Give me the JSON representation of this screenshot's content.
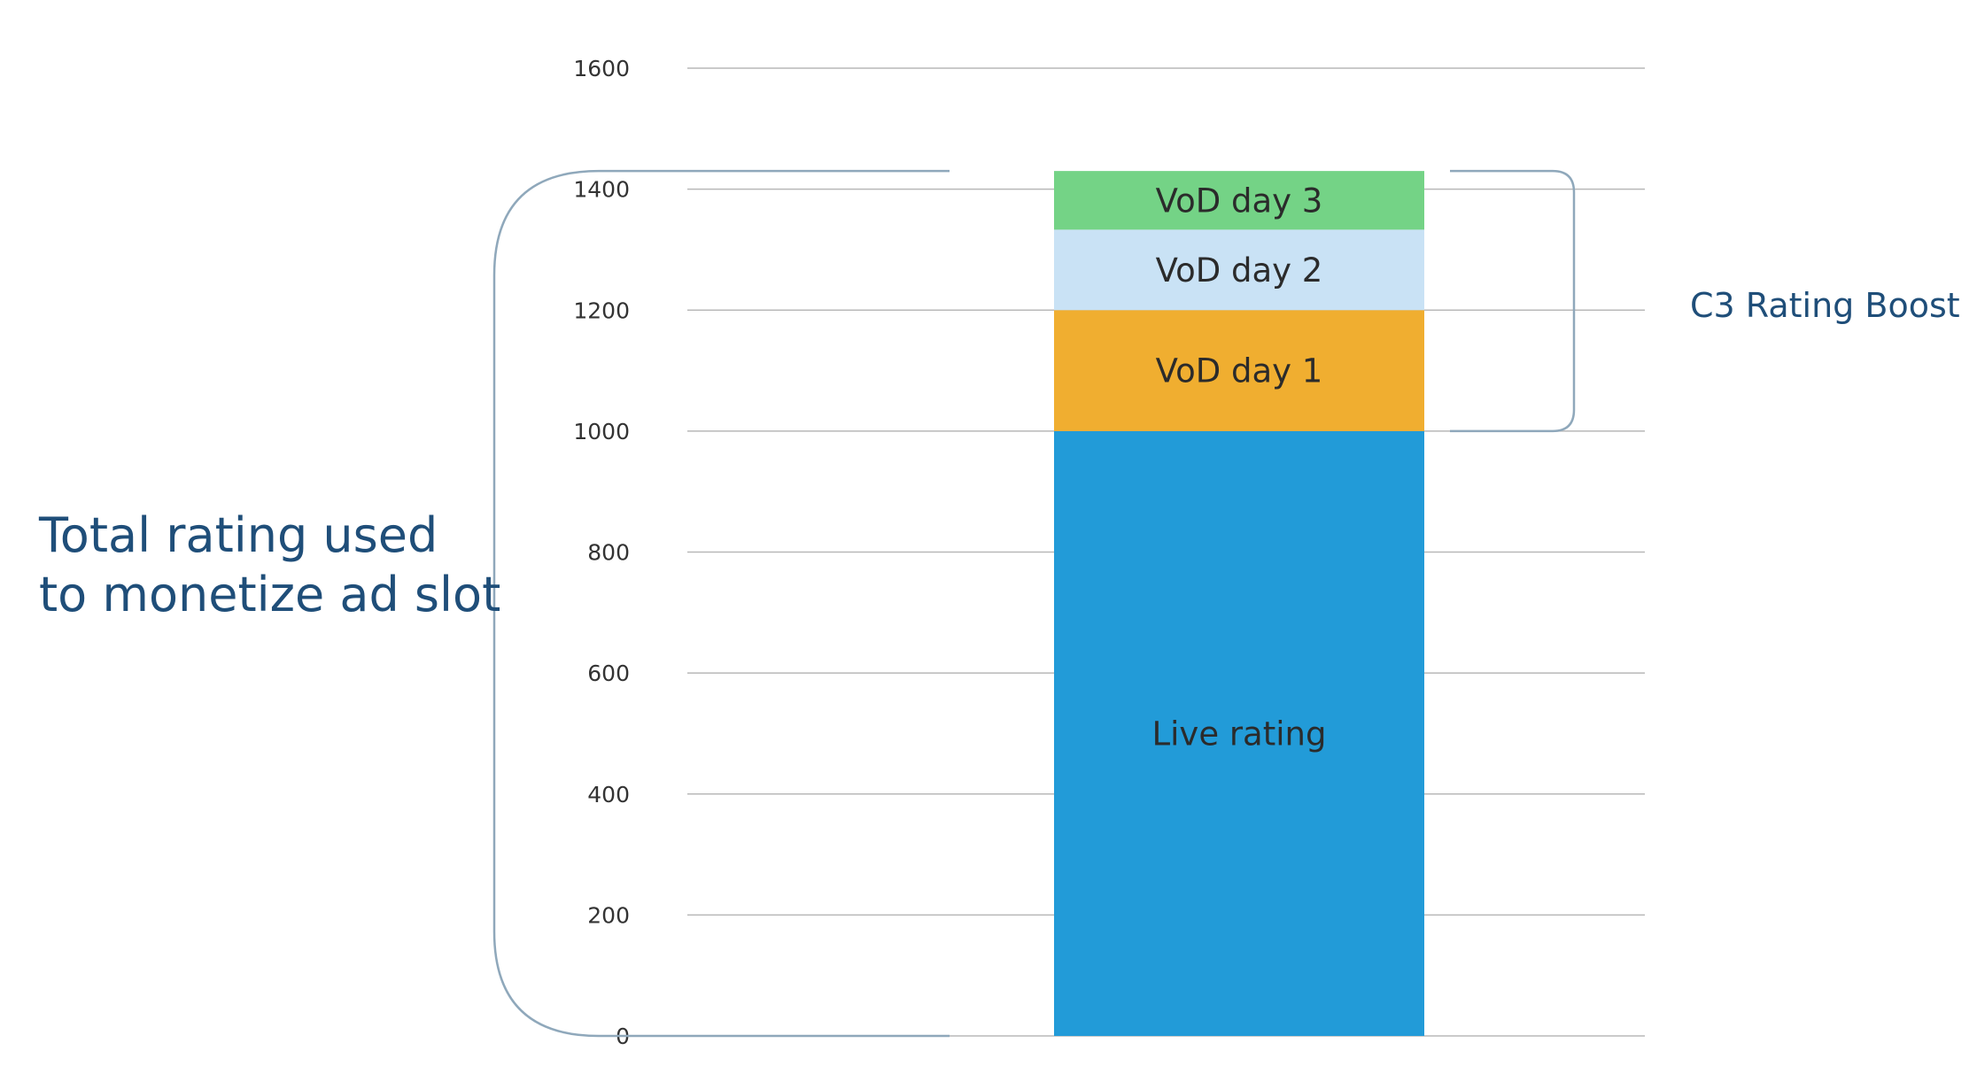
{
  "chart_data": {
    "type": "bar",
    "stacked": true,
    "categories": [
      ""
    ],
    "series": [
      {
        "name": "Live rating",
        "values": [
          1000
        ],
        "color": "#229bd8"
      },
      {
        "name": "VoD day 1",
        "values": [
          200
        ],
        "color": "#f0ae30"
      },
      {
        "name": "VoD day 2",
        "values": [
          133
        ],
        "color": "#c9e2f5"
      },
      {
        "name": "VoD day 3",
        "values": [
          97
        ],
        "color": "#74d386"
      }
    ],
    "ylim": [
      0,
      1600
    ],
    "yticks": [
      0,
      200,
      400,
      600,
      800,
      1000,
      1200,
      1400,
      1600
    ],
    "grid": true,
    "title": "",
    "xlabel": "",
    "ylabel": "",
    "annotations": {
      "total_label": [
        "Total rating used",
        "to monetize ad slot"
      ],
      "boost_label": "C3 Rating Boost"
    },
    "colors": {
      "grid": "#b8b8b8",
      "bracket": "#8fa8bb",
      "annotation_text": "#1f4e79",
      "tick_text": "#333333"
    }
  }
}
